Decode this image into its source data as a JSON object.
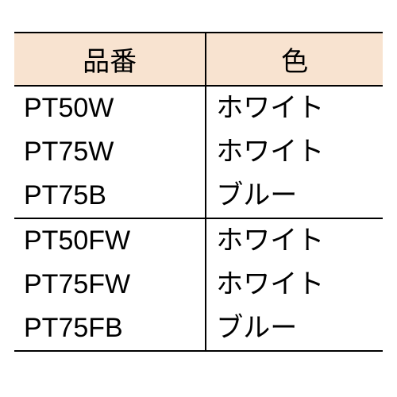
{
  "table": {
    "header_bg": "#f8e3d0",
    "border_color": "#000000",
    "columns": [
      {
        "label": "品番",
        "align": "center"
      },
      {
        "label": "色",
        "align": "center"
      }
    ],
    "groups": [
      {
        "rows": [
          {
            "code": "PT50W",
            "color": "ホワイト"
          },
          {
            "code": "PT75W",
            "color": "ホワイト"
          },
          {
            "code": "PT75B",
            "color": "ブルー"
          }
        ]
      },
      {
        "rows": [
          {
            "code": "PT50FW",
            "color": "ホワイト"
          },
          {
            "code": "PT75FW",
            "color": "ホワイト"
          },
          {
            "code": "PT75FB",
            "color": "ブルー"
          }
        ]
      }
    ]
  },
  "style": {
    "background_color": "#ffffff",
    "font_size_header": 34,
    "font_size_cell": 34,
    "border_width": 2
  }
}
